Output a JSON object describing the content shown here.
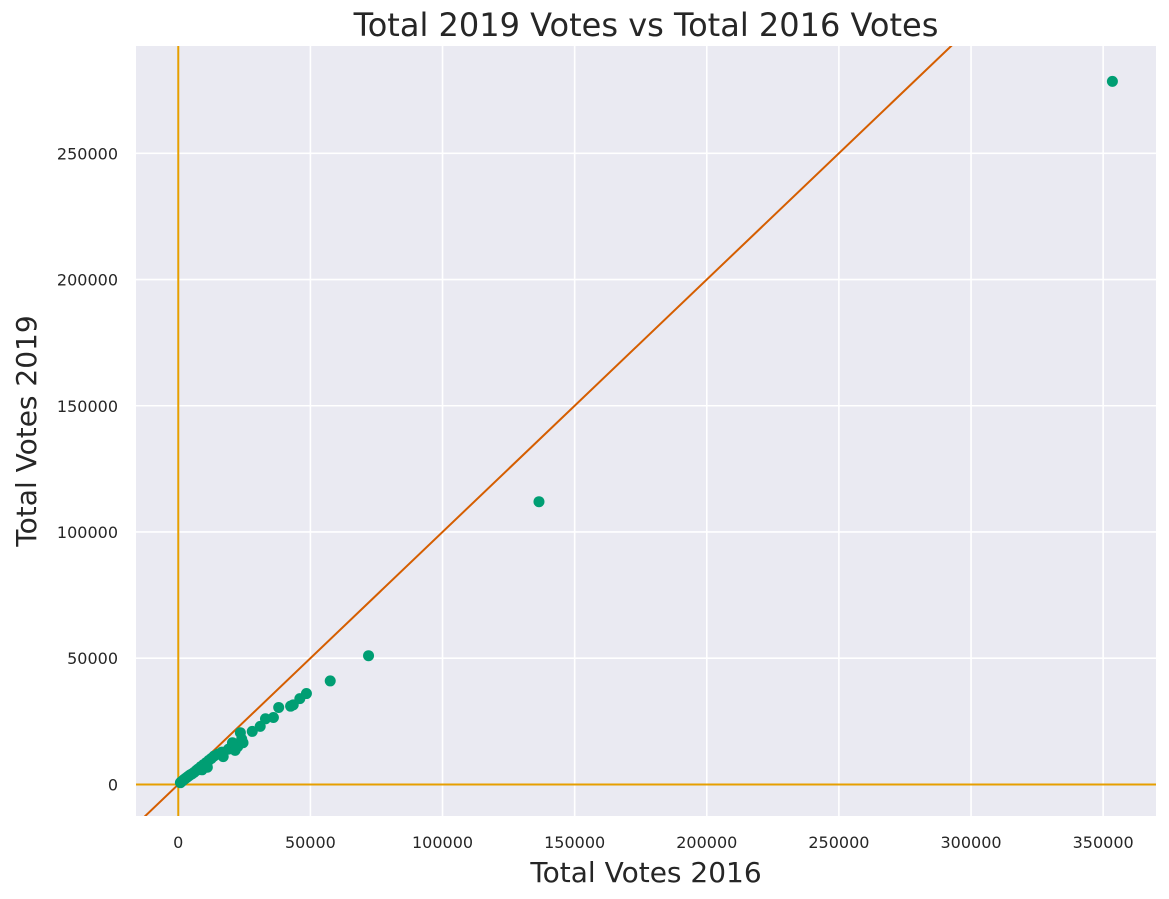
{
  "chart_data": {
    "type": "scatter",
    "title": "Total 2019 Votes vs Total 2016 Votes",
    "xlabel": "Total Votes 2016",
    "ylabel": "Total Votes 2019",
    "xlim": [
      -16000,
      370000
    ],
    "ylim": [
      -12500,
      292500
    ],
    "xticks": [
      0,
      50000,
      100000,
      150000,
      200000,
      250000,
      300000,
      350000
    ],
    "yticks": [
      0,
      50000,
      100000,
      150000,
      200000,
      250000
    ],
    "xtick_labels": [
      "0",
      "50000",
      "100000",
      "150000",
      "200000",
      "250000",
      "300000",
      "350000"
    ],
    "ytick_labels": [
      "0",
      "50000",
      "100000",
      "150000",
      "200000",
      "250000"
    ],
    "grid": true,
    "colors": {
      "background": "#eaeaf2",
      "grid": "#ffffff",
      "points": "#009e73",
      "identity_line": "#d55e00",
      "zero_lines": "#e69f00",
      "text": "#262626"
    },
    "reference_lines": [
      {
        "kind": "identity",
        "description": "y = x"
      },
      {
        "kind": "vertical",
        "x": 0
      },
      {
        "kind": "horizontal",
        "y": 0
      }
    ],
    "points": [
      {
        "x": 800,
        "y": 700
      },
      {
        "x": 1200,
        "y": 1100
      },
      {
        "x": 1600,
        "y": 1400
      },
      {
        "x": 2000,
        "y": 1800
      },
      {
        "x": 2500,
        "y": 2200
      },
      {
        "x": 3000,
        "y": 2600
      },
      {
        "x": 3500,
        "y": 3000
      },
      {
        "x": 4000,
        "y": 3400
      },
      {
        "x": 4500,
        "y": 3800
      },
      {
        "x": 5200,
        "y": 4200
      },
      {
        "x": 6000,
        "y": 4800
      },
      {
        "x": 6800,
        "y": 5500
      },
      {
        "x": 7500,
        "y": 6100
      },
      {
        "x": 8500,
        "y": 7000
      },
      {
        "x": 9500,
        "y": 7800
      },
      {
        "x": 10500,
        "y": 8600
      },
      {
        "x": 11500,
        "y": 9500
      },
      {
        "x": 12500,
        "y": 10300
      },
      {
        "x": 13500,
        "y": 11200
      },
      {
        "x": 15000,
        "y": 12000
      },
      {
        "x": 16500,
        "y": 12800
      },
      {
        "x": 9000,
        "y": 5800
      },
      {
        "x": 11000,
        "y": 6800
      },
      {
        "x": 17000,
        "y": 11000
      },
      {
        "x": 19000,
        "y": 14000
      },
      {
        "x": 20500,
        "y": 16500
      },
      {
        "x": 21500,
        "y": 13500
      },
      {
        "x": 22500,
        "y": 15000
      },
      {
        "x": 23500,
        "y": 20500
      },
      {
        "x": 24000,
        "y": 18000
      },
      {
        "x": 24500,
        "y": 16500
      },
      {
        "x": 28000,
        "y": 21000
      },
      {
        "x": 31000,
        "y": 23000
      },
      {
        "x": 33000,
        "y": 26000
      },
      {
        "x": 36000,
        "y": 26500
      },
      {
        "x": 38000,
        "y": 30500
      },
      {
        "x": 42500,
        "y": 31000
      },
      {
        "x": 43500,
        "y": 31500
      },
      {
        "x": 46000,
        "y": 34000
      },
      {
        "x": 48500,
        "y": 36000
      },
      {
        "x": 57500,
        "y": 41000
      },
      {
        "x": 72000,
        "y": 51000
      },
      {
        "x": 136500,
        "y": 112000
      },
      {
        "x": 353500,
        "y": 278500
      }
    ]
  }
}
